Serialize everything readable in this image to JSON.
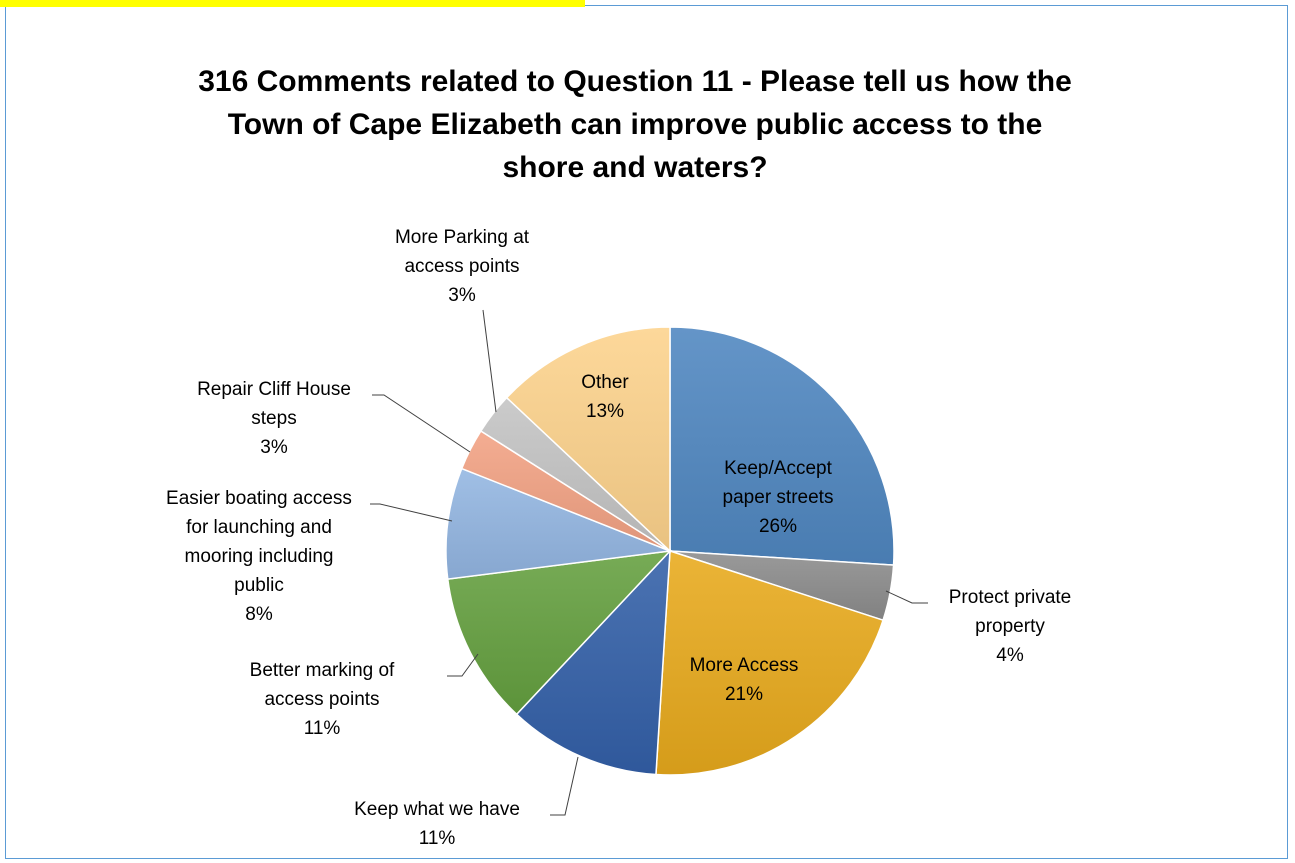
{
  "chart_data": {
    "type": "pie",
    "title": "316 Comments related to Question 11 - Please tell us how the Town of Cape Elizabeth can improve public access to the shore and waters?",
    "slices": [
      {
        "label": "Keep/Accept paper streets",
        "lines": [
          "Keep/Accept",
          "paper streets",
          "26%"
        ],
        "value": 26,
        "color": "#4f87c0"
      },
      {
        "label": "Protect private property",
        "lines": [
          "Protect private",
          "property",
          "4%"
        ],
        "value": 4,
        "color": "#8c8c8c"
      },
      {
        "label": "More Access",
        "lines": [
          "More Access",
          "21%"
        ],
        "value": 21,
        "color": "#e8aa1c"
      },
      {
        "label": "Keep what we have",
        "lines": [
          "Keep what we have",
          "11%"
        ],
        "value": 11,
        "color": "#3360a8"
      },
      {
        "label": "Better marking of access points",
        "lines": [
          "Better marking of",
          "access points",
          "11%"
        ],
        "value": 11,
        "color": "#64a03f"
      },
      {
        "label": "Easier boating access for launching and mooring including public",
        "lines": [
          "Easier boating access",
          "for launching and",
          "mooring including",
          "public",
          "8%"
        ],
        "value": 8,
        "color": "#93b6e2"
      },
      {
        "label": "Repair Cliff House steps",
        "lines": [
          "Repair Cliff House",
          "steps",
          "3%"
        ],
        "value": 3,
        "color": "#f2a283"
      },
      {
        "label": "More Parking at access points",
        "lines": [
          "More Parking at",
          "access points",
          "3%"
        ],
        "value": 3,
        "color": "#c4c4c4"
      },
      {
        "label": "Other",
        "lines": [
          "Other",
          "13%"
        ],
        "value": 13,
        "color": "#fdd38c"
      }
    ]
  }
}
